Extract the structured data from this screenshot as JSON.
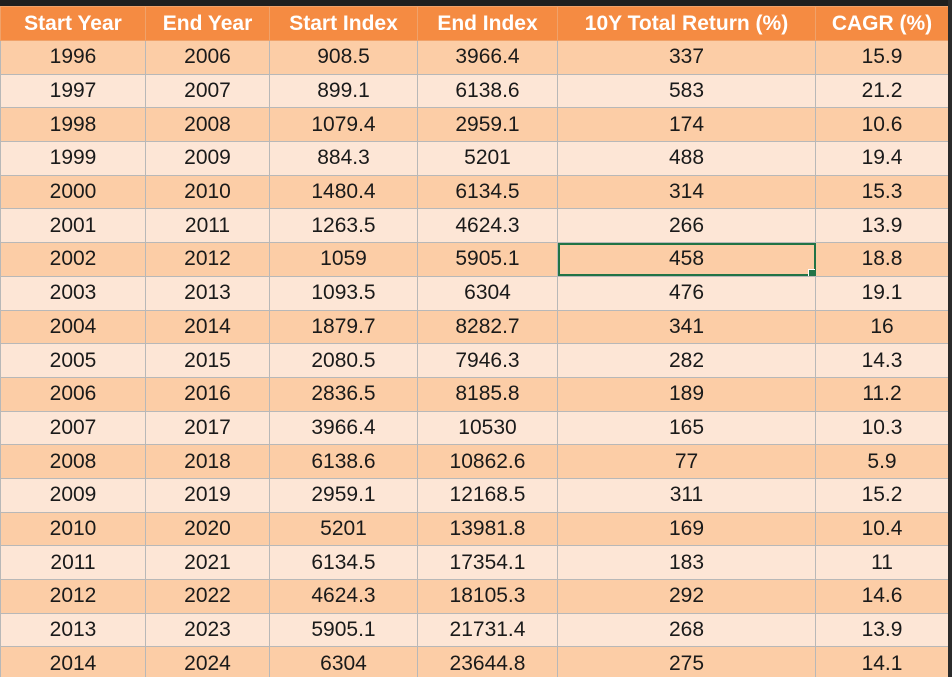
{
  "table": {
    "headers": [
      "Start Year",
      "End Year",
      "Start Index",
      "End Index",
      "10Y Total Return (%)",
      "CAGR (%)"
    ],
    "rows": [
      [
        "1996",
        "2006",
        "908.5",
        "3966.4",
        "337",
        "15.9"
      ],
      [
        "1997",
        "2007",
        "899.1",
        "6138.6",
        "583",
        "21.2"
      ],
      [
        "1998",
        "2008",
        "1079.4",
        "2959.1",
        "174",
        "10.6"
      ],
      [
        "1999",
        "2009",
        "884.3",
        "5201",
        "488",
        "19.4"
      ],
      [
        "2000",
        "2010",
        "1480.4",
        "6134.5",
        "314",
        "15.3"
      ],
      [
        "2001",
        "2011",
        "1263.5",
        "4624.3",
        "266",
        "13.9"
      ],
      [
        "2002",
        "2012",
        "1059",
        "5905.1",
        "458",
        "18.8"
      ],
      [
        "2003",
        "2013",
        "1093.5",
        "6304",
        "476",
        "19.1"
      ],
      [
        "2004",
        "2014",
        "1879.7",
        "8282.7",
        "341",
        "16"
      ],
      [
        "2005",
        "2015",
        "2080.5",
        "7946.3",
        "282",
        "14.3"
      ],
      [
        "2006",
        "2016",
        "2836.5",
        "8185.8",
        "189",
        "11.2"
      ],
      [
        "2007",
        "2017",
        "3966.4",
        "10530",
        "165",
        "10.3"
      ],
      [
        "2008",
        "2018",
        "6138.6",
        "10862.6",
        "77",
        "5.9"
      ],
      [
        "2009",
        "2019",
        "2959.1",
        "12168.5",
        "311",
        "15.2"
      ],
      [
        "2010",
        "2020",
        "5201",
        "13981.8",
        "169",
        "10.4"
      ],
      [
        "2011",
        "2021",
        "6134.5",
        "17354.1",
        "183",
        "11"
      ],
      [
        "2012",
        "2022",
        "4624.3",
        "18105.3",
        "292",
        "14.6"
      ],
      [
        "2013",
        "2023",
        "5905.1",
        "21731.4",
        "268",
        "13.9"
      ],
      [
        "2014",
        "2024",
        "6304",
        "23644.8",
        "275",
        "14.1"
      ]
    ],
    "selected_cell": {
      "row": 6,
      "col": 4
    }
  },
  "colors": {
    "header_bg": "#f58b42",
    "band_a": "#fccda6",
    "band_b": "#fde6d6",
    "selection": "#217346"
  }
}
